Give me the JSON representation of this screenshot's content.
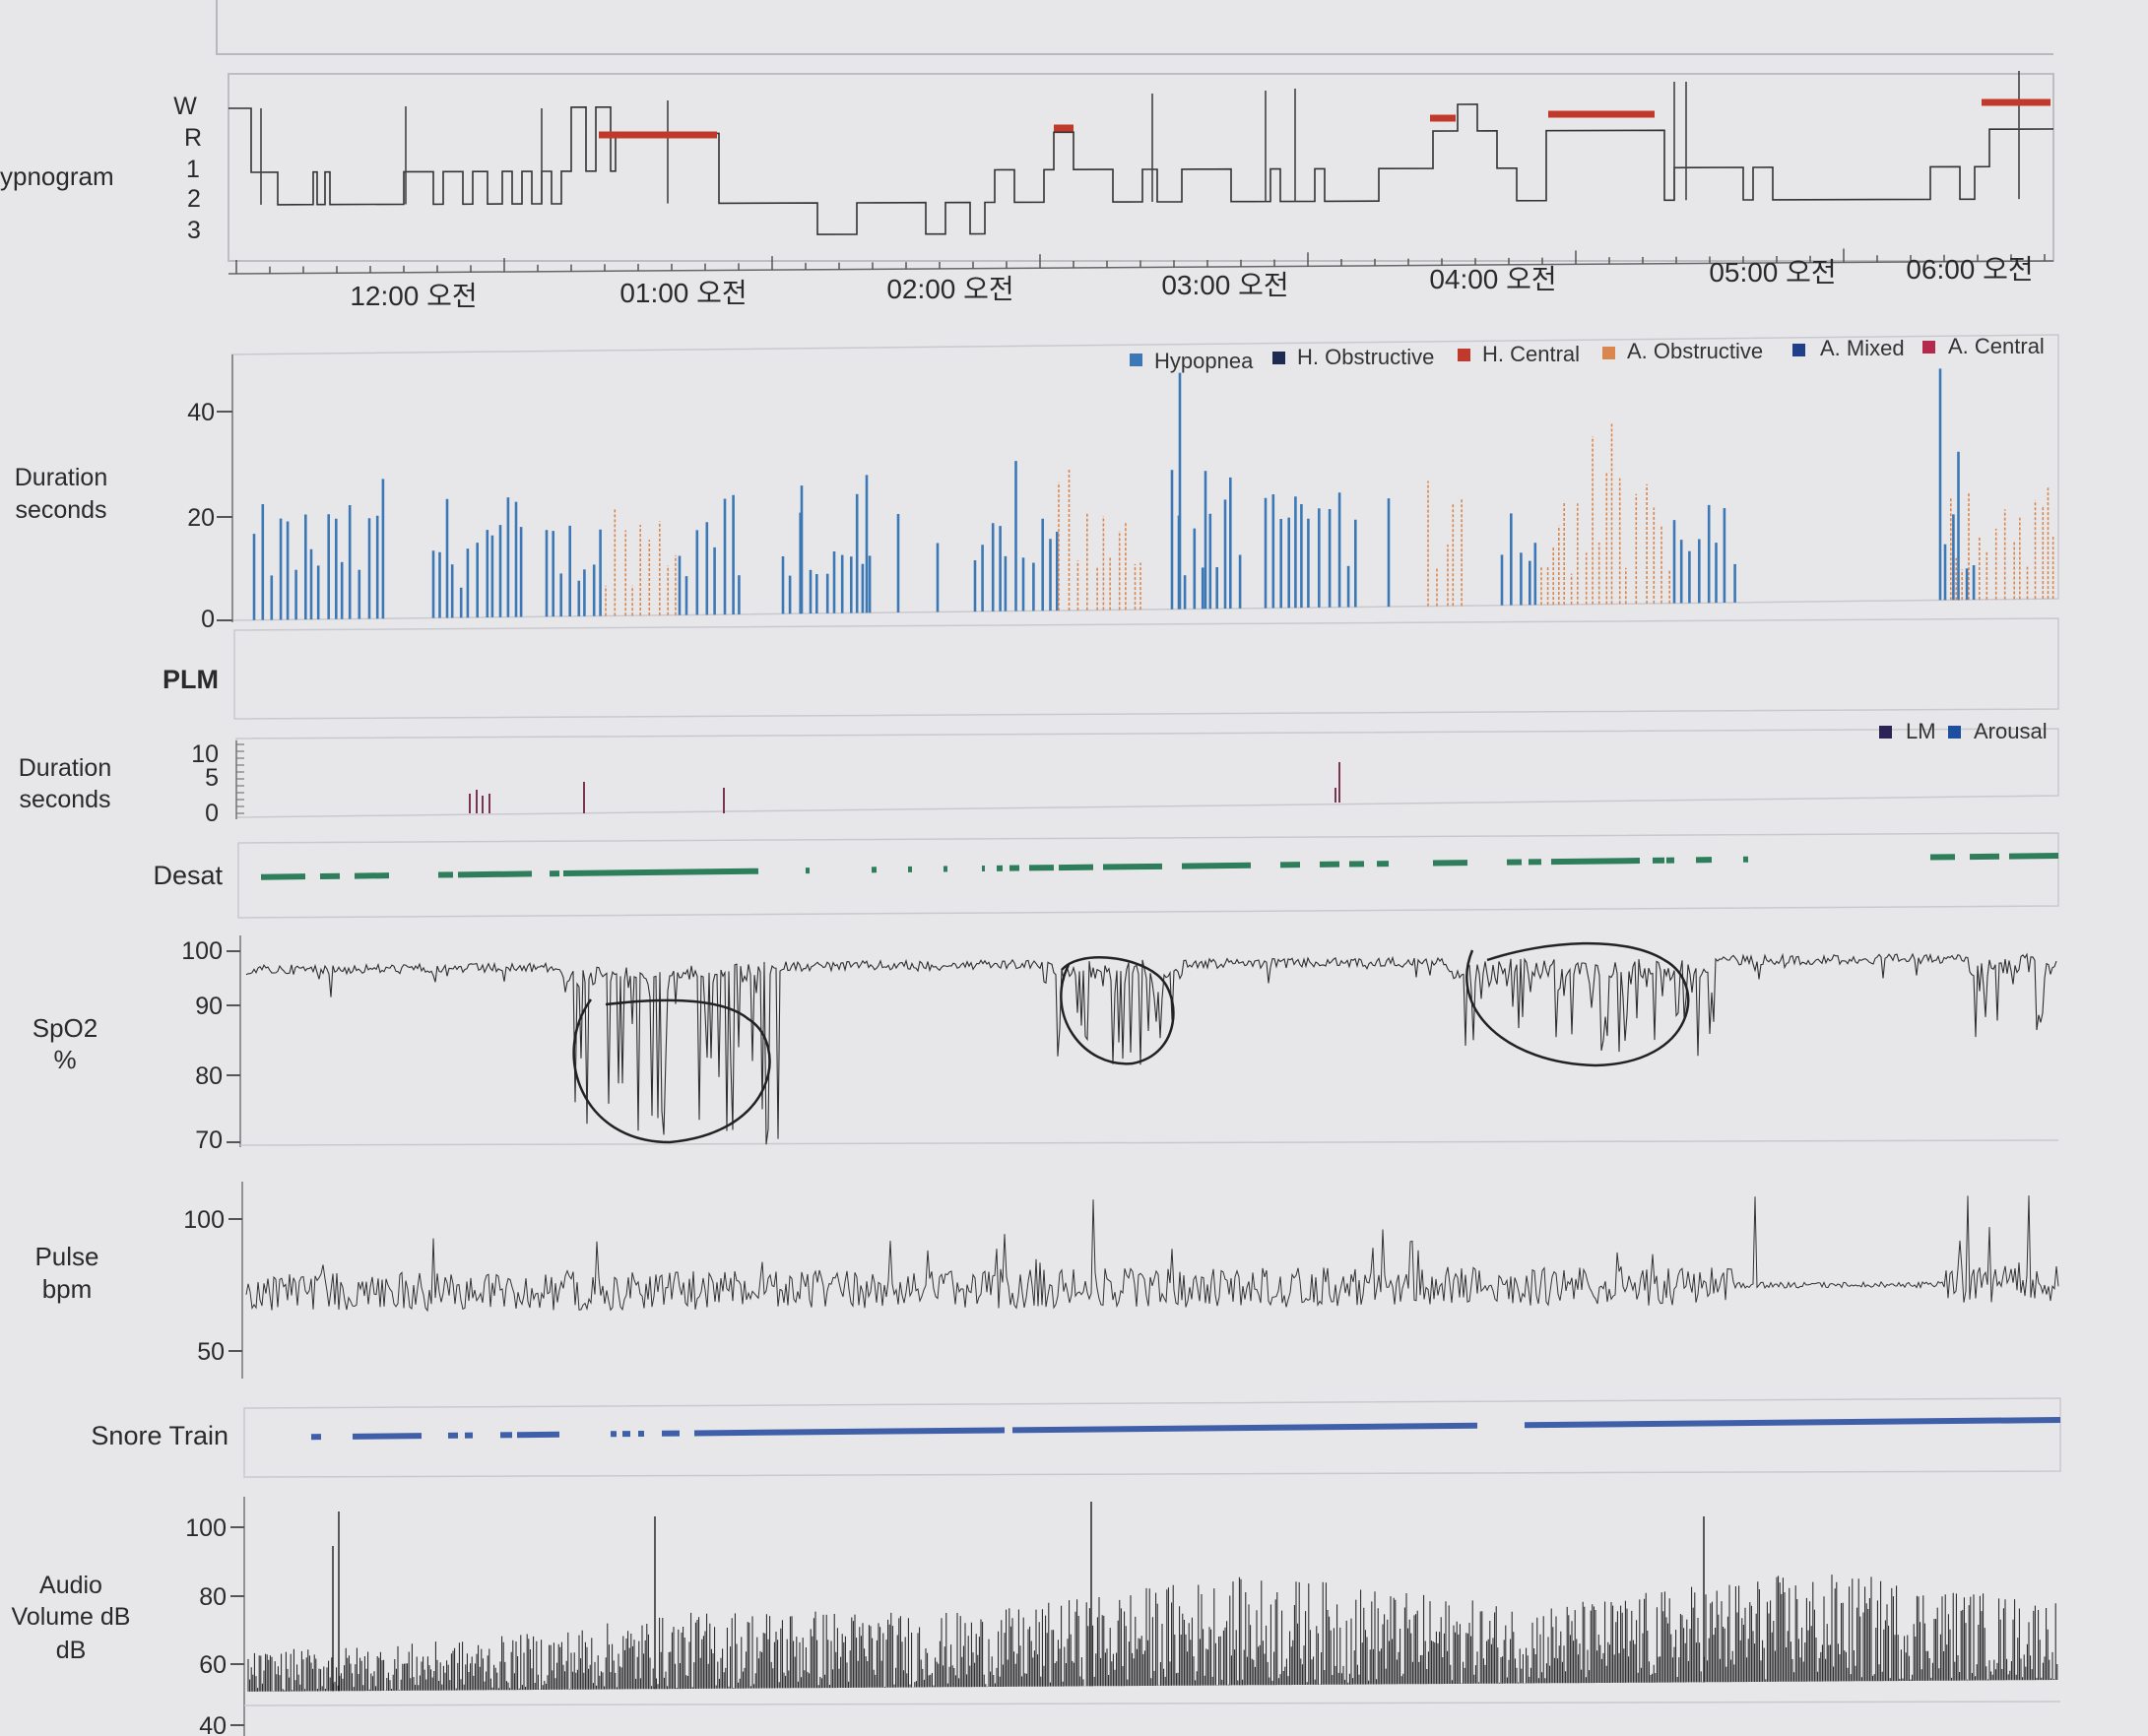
{
  "hypnogram": {
    "label": "ypnogram",
    "stage_labels": [
      "W",
      "R",
      "1",
      "2",
      "3"
    ],
    "time_labels": [
      "12:00 오전",
      "01:00 오전",
      "02:00 오전",
      "03:00 오전",
      "04:00 오전",
      "05:00 오전",
      "06:00 오전"
    ],
    "rem_color": "#c0392b",
    "rem_segments": [
      [
        1.05,
        1.58
      ],
      [
        3.55,
        3.63
      ],
      [
        4.5,
        4.58
      ],
      [
        4.88,
        5.3
      ],
      [
        6.9,
        7.25
      ]
    ]
  },
  "respiratory": {
    "ylabel_line1": "Duration",
    "ylabel_line2": "seconds",
    "yticks": [
      "40",
      "20",
      "0"
    ],
    "legend": [
      {
        "name": "Hypopnea",
        "color": "#3b78b5"
      },
      {
        "name": "H. Obstructive",
        "color": "#1f2a50"
      },
      {
        "name": "H. Central",
        "color": "#c0392b"
      },
      {
        "name": "A. Obstructive",
        "color": "#d9874f"
      },
      {
        "name": "A. Mixed",
        "color": "#1f3f8a"
      },
      {
        "name": "A. Central",
        "color": "#b5294e"
      }
    ]
  },
  "plm": {
    "label": "PLM"
  },
  "limb": {
    "ylabel_line1": "Duration",
    "ylabel_line2": "seconds",
    "yticks": [
      "10",
      "5",
      "0"
    ],
    "legend": [
      {
        "name": "LM",
        "color": "#2b2356"
      },
      {
        "name": "Arousal",
        "color": "#1d4fa0"
      }
    ]
  },
  "desat": {
    "label": "Desat",
    "color": "#2e7d5b"
  },
  "spo2": {
    "ylabel_line1": "SpO2",
    "ylabel_line2": "%",
    "yticks": [
      "100",
      "90",
      "80",
      "70"
    ]
  },
  "pulse": {
    "ylabel_line1": "Pulse",
    "ylabel_line2": "bpm",
    "yticks": [
      "100",
      "50"
    ]
  },
  "snore": {
    "label": "Snore Train",
    "color": "#3f5fa8"
  },
  "audio": {
    "ylabel_line1": "Audio",
    "ylabel_line2": "Volume dB",
    "ylabel_line3": "dB",
    "yticks": [
      "100",
      "80",
      "60",
      "40"
    ]
  },
  "chart_data": [
    {
      "type": "line",
      "title": "Hypnogram",
      "y_categories": [
        "W",
        "R",
        "1",
        "2",
        "3"
      ],
      "x_ticks": [
        "12:00 오전",
        "01:00 오전",
        "02:00 오전",
        "03:00 오전",
        "04:00 오전",
        "05:00 오전",
        "06:00 오전"
      ],
      "x_hours": [
        0,
        1,
        2,
        3,
        4,
        5,
        6
      ],
      "xlim": [
        -0.7,
        6.3
      ],
      "rem_periods_hours": [
        [
          0.65,
          1.15
        ],
        [
          2.95,
          3.05
        ],
        [
          3.9,
          4.05
        ],
        [
          4.2,
          4.65
        ],
        [
          5.7,
          6.3
        ]
      ]
    },
    {
      "type": "bar",
      "title": "Respiratory events",
      "ylim": [
        0,
        48
      ],
      "series": [
        {
          "name": "Hypopnea",
          "values": "approx. many events 10-45 s across night"
        },
        {
          "name": "A. Obstructive",
          "values": "clusters 15-45 s near 01:00, 04:00-05:00, after 06:00"
        }
      ]
    },
    {
      "type": "line",
      "title": "SpO2",
      "ylim": [
        70,
        100
      ],
      "approx_baseline": 96,
      "deepest_dips": [
        {
          "time": "~01:00",
          "value": 73
        },
        {
          "time": "~02:30",
          "value": 76
        },
        {
          "time": "~04:30",
          "value": 83
        }
      ]
    },
    {
      "type": "line",
      "title": "Pulse",
      "ylim": [
        40,
        110
      ],
      "approx_baseline": 72
    },
    {
      "type": "line",
      "title": "Audio Volume dB",
      "ylim": [
        40,
        105
      ],
      "approx_baseline": 60,
      "approx_peaks": 85
    }
  ]
}
